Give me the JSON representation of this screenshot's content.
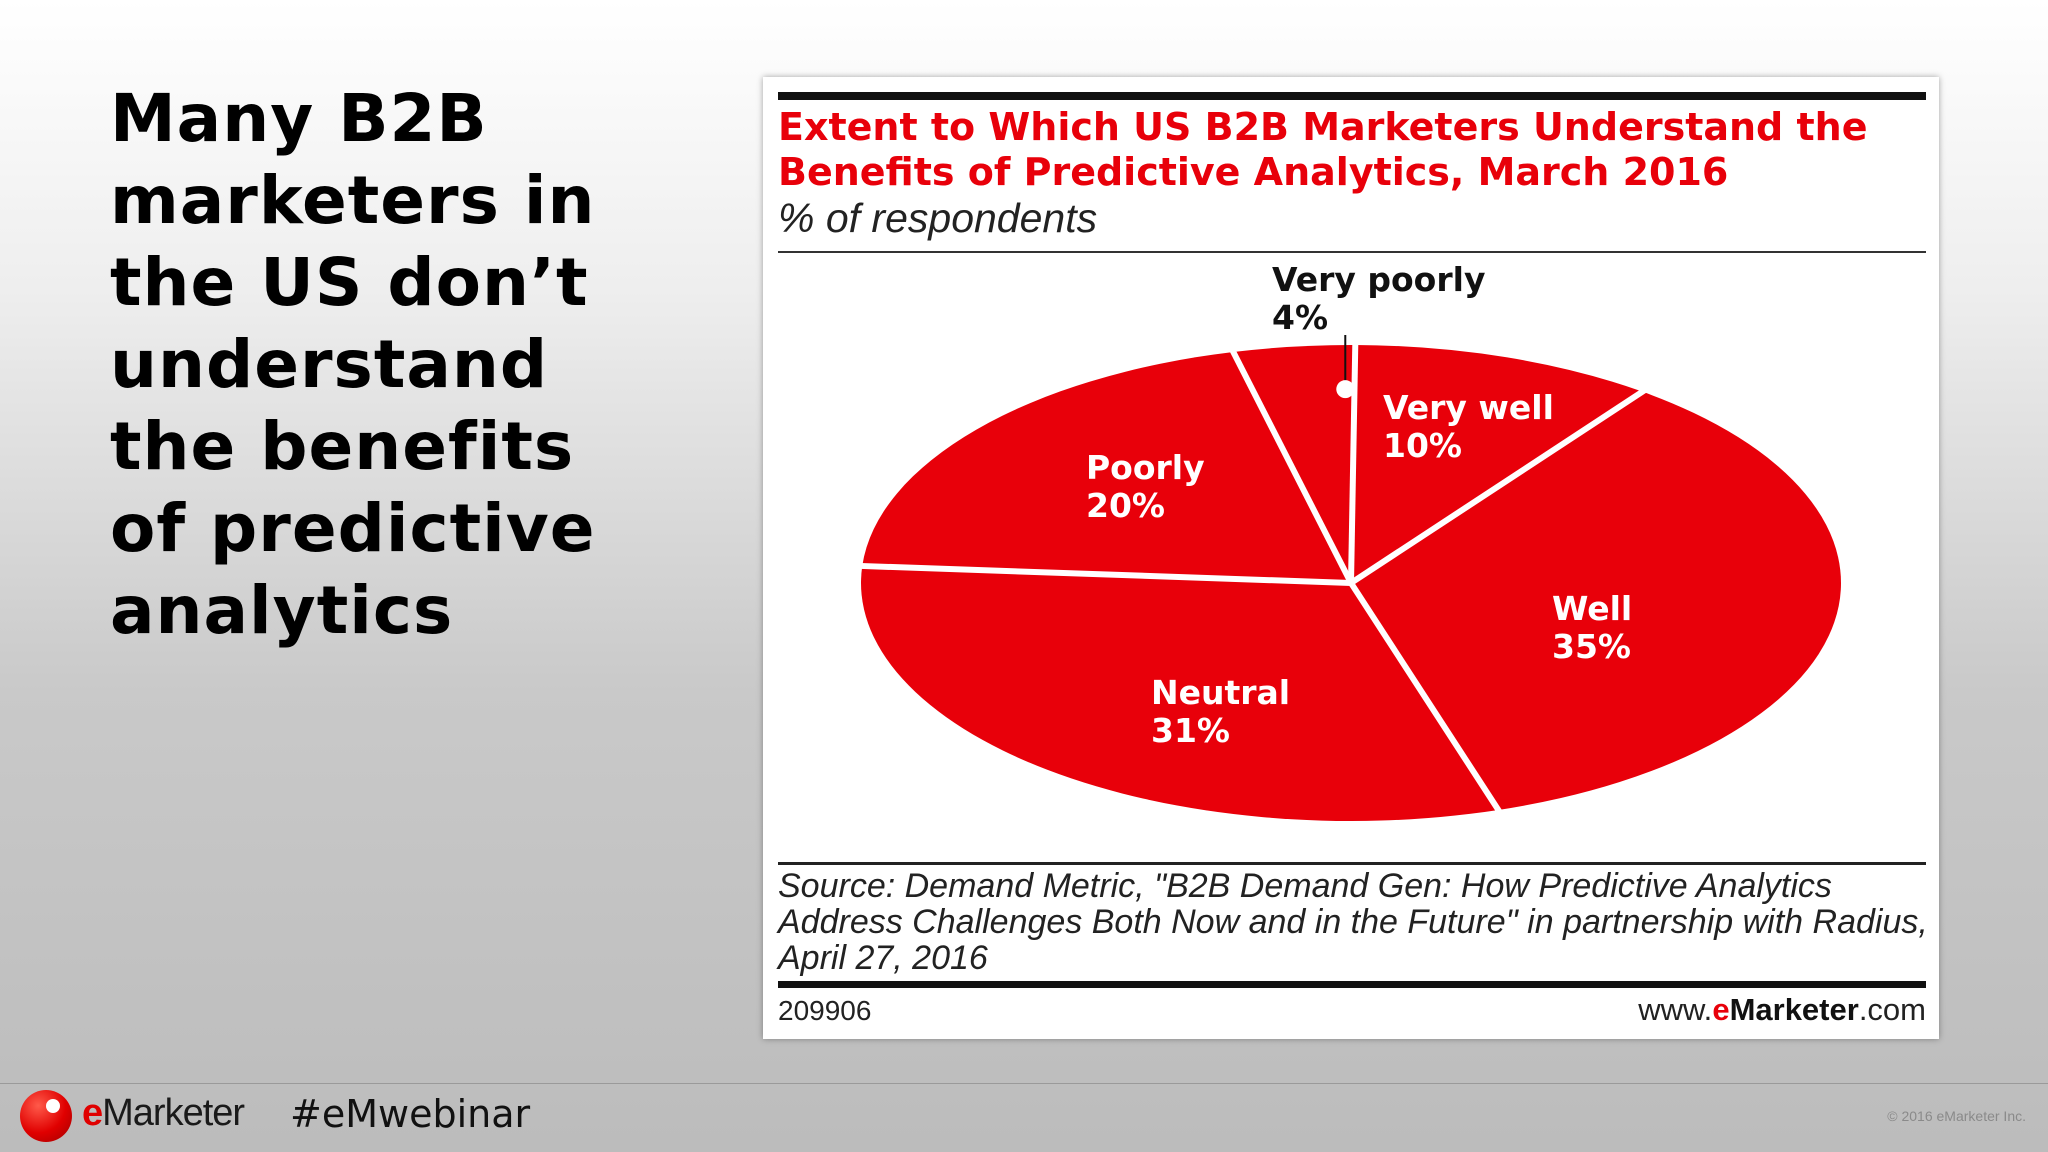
{
  "slide": {
    "headline": "Many B2B marketers in the US don’t understand the benefits of predictive analytics",
    "hashtag": "#eMwebinar",
    "copyright": "© 2016 eMarketer Inc.",
    "logo": {
      "prefix": "e",
      "rest": "Marketer"
    }
  },
  "chart_data": {
    "type": "pie",
    "title": "Extent to Which US B2B Marketers Understand the Benefits of Predictive Analytics, March 2016",
    "subtitle": "% of respondents",
    "slices": [
      {
        "label": "Very well",
        "value": 10,
        "value_label": "10%"
      },
      {
        "label": "Well",
        "value": 35,
        "value_label": "35%"
      },
      {
        "label": "Neutral",
        "value": 31,
        "value_label": "31%"
      },
      {
        "label": "Poorly",
        "value": 20,
        "value_label": "20%"
      },
      {
        "label": "Very poorly",
        "value": 4,
        "value_label": "4%"
      }
    ],
    "source": "Source: Demand Metric, \"B2B Demand Gen: How Predictive Analytics Address Challenges Both Now and in the Future\" in partnership with Radius, April 27, 2016",
    "chart_id": "209906",
    "site": {
      "prefix": "www.",
      "brand_e": "e",
      "brand_rest": "Marketer",
      "suffix": ".com"
    },
    "colors": {
      "slice": "#e8000a",
      "divider": "#ffffff"
    }
  }
}
